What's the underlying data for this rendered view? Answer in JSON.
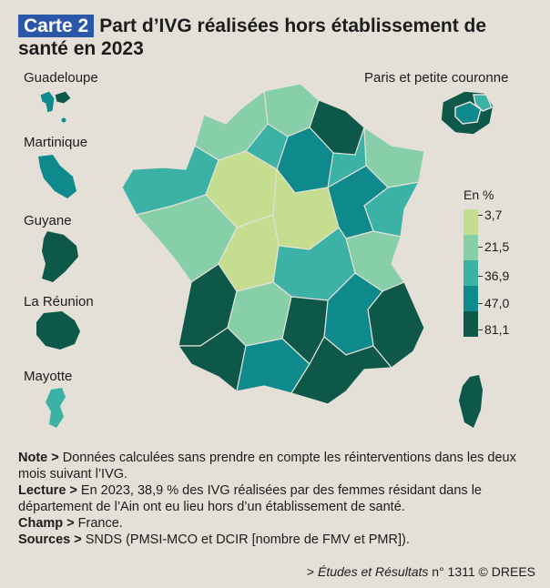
{
  "title": {
    "badge": "Carte 2",
    "text": "Part d’IVG réalisées hors établissement de santé en 2023"
  },
  "regions": {
    "guadeloupe": "Guadeloupe",
    "martinique": "Martinique",
    "guyane": "Guyane",
    "reunion": "La Réunion",
    "mayotte": "Mayotte",
    "paris": "Paris et petite couronne"
  },
  "legend": {
    "title": "En %",
    "values": [
      "3,7",
      "21,5",
      "36,9",
      "47,0",
      "81,1"
    ],
    "colors": [
      "#c4dd8e",
      "#86cfa8",
      "#3cb1a6",
      "#0f8a8c",
      "#0d5849"
    ]
  },
  "notes": {
    "note_label": "Note >",
    "note_text": "Données calculées sans prendre en compte les réinterventions dans les deux mois suivant l’IVG.",
    "lecture_label": "Lecture >",
    "lecture_text": "En 2023, 38,9 % des IVG réalisées par des femmes résidant dans le département de l’Ain ont eu lieu hors d’un établissement de santé.",
    "champ_label": "Champ >",
    "champ_text": "France.",
    "sources_label": "Sources >",
    "sources_text": "SNDS (PMSI-MCO et DCIR [nombre de FMV et PMR])."
  },
  "credit": {
    "prefix": "> ",
    "italic": "Études et Résultats",
    "suffix": " n° 1311 © DREES"
  }
}
